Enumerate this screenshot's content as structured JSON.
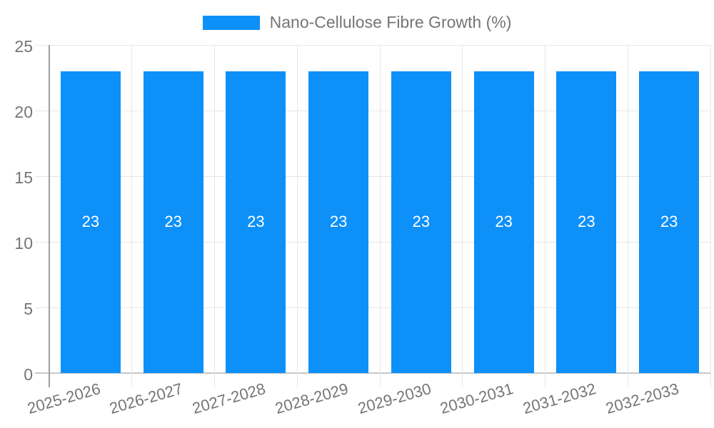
{
  "chart_data": {
    "type": "bar",
    "title": "",
    "legend_label": "Nano-Cellulose Fibre Growth (%)",
    "legend_position": "top",
    "categories": [
      "2025-2026",
      "2026-2027",
      "2027-2028",
      "2028-2029",
      "2029-2030",
      "2030-2031",
      "2031-2032",
      "2032-2033"
    ],
    "values": [
      23,
      23,
      23,
      23,
      23,
      23,
      23,
      23
    ],
    "bar_value_labels": [
      "23",
      "23",
      "23",
      "23",
      "23",
      "23",
      "23",
      "23"
    ],
    "xlabel": "",
    "ylabel": "",
    "ylim": [
      0,
      25
    ],
    "yticks": [
      0,
      5,
      10,
      15,
      20,
      25
    ],
    "grid": true,
    "x_label_rotation_deg": -16,
    "colors": {
      "bar": "#0e90f9",
      "bar_label_text": "#ffffff",
      "axis_line": "#9e9e9e",
      "gridline": "#e6e6e6",
      "baseline": "#c8c8c8",
      "tick_text": "#757575",
      "legend_text": "#757575",
      "background": "#ffffff"
    }
  }
}
